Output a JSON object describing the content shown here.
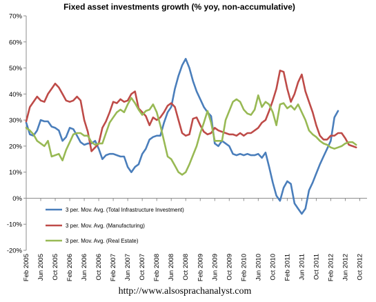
{
  "chart_data": {
    "type": "line",
    "title": "Fixed asset investments growth (% yoy, non-accumulative)",
    "footer": "http://www.alsosprachanalyst.com",
    "ylim": [
      -20,
      70
    ],
    "y_ticks": [
      "70%",
      "60%",
      "50%",
      "40%",
      "30%",
      "20%",
      "10%",
      "0%",
      "-10%",
      "-20%"
    ],
    "y_tick_values": [
      70,
      60,
      50,
      40,
      30,
      20,
      10,
      0,
      -10,
      -20
    ],
    "x_ticks": [
      "Feb 2005",
      "Jun 2005",
      "Oct 2005",
      "Feb 2006",
      "Jun 2006",
      "Oct 2006",
      "Feb 2007",
      "Jun 2007",
      "Oct 2007",
      "Feb 2008",
      "Jun 2008",
      "Oct 2008",
      "Feb 2009",
      "Jun 2009",
      "Oct 2009",
      "Feb 2010",
      "Jun 2010",
      "Oct 2010",
      "Feb 2011",
      "Jun 2011",
      "Oct 2011",
      "Feb 2012",
      "Jun 2012",
      "Oct 2012"
    ],
    "x_tick_months": [
      0,
      4,
      8,
      12,
      16,
      20,
      24,
      28,
      32,
      36,
      40,
      44,
      48,
      52,
      56,
      60,
      64,
      68,
      72,
      76,
      80,
      84,
      88,
      92
    ],
    "x_start": "Feb 2005",
    "x_end": "Dec 2012",
    "grid": false,
    "legend_position": "bottom-left",
    "series": [
      {
        "name": "3 per. Mov. Avg. (Total Infrastructure Investment)",
        "color": "#4a7ebb",
        "values": [
          29,
          24.5,
          24,
          26,
          30,
          29.5,
          29.5,
          27.5,
          27,
          26,
          22,
          23.5,
          27,
          26.5,
          24,
          21.5,
          20.5,
          21,
          21,
          22,
          19,
          15,
          16.5,
          17,
          17,
          16.5,
          16,
          16,
          12,
          10,
          12,
          13,
          17,
          19,
          22.5,
          23.5,
          24,
          24,
          29,
          33,
          35,
          42,
          47,
          51,
          53.5,
          50,
          45,
          41,
          38,
          35,
          33,
          31.5,
          21,
          20,
          22,
          21,
          20,
          17,
          16.5,
          17,
          16.5,
          17,
          16.5,
          16.5,
          17,
          15.5,
          17.5,
          12,
          6,
          1,
          -1,
          4,
          6.5,
          5.5,
          -2,
          -4,
          -6,
          -4,
          3,
          6,
          9.5,
          13,
          16,
          19,
          22,
          31,
          33.5
        ]
      },
      {
        "name": "3 per. Mov. Avg. (Manufacturing)",
        "color": "#be4b48",
        "values": [
          29.5,
          35,
          37,
          39,
          37.5,
          37,
          40,
          42,
          44,
          42.5,
          40,
          37.5,
          37,
          37.5,
          39,
          37.5,
          30,
          25.5,
          18,
          19.5,
          21,
          27,
          29.5,
          33,
          37,
          36.5,
          38,
          37,
          37.5,
          40,
          41,
          34.5,
          33,
          31.5,
          28,
          31,
          30,
          31,
          33,
          35.5,
          36.5,
          35,
          30,
          25,
          24,
          24.5,
          30.5,
          31,
          28,
          25.5,
          24.5,
          25,
          27,
          26,
          25.5,
          25,
          24.5,
          24.5,
          24,
          25,
          24,
          25,
          25,
          26,
          27,
          29,
          30,
          33.5,
          37.5,
          42,
          49,
          48.5,
          42,
          37,
          40,
          44.5,
          47.5,
          41,
          37,
          33,
          28,
          24,
          22.5,
          22.5,
          24,
          24,
          25,
          25,
          23,
          20.5,
          20,
          19.5
        ]
      },
      {
        "name": "3 per. Mov. Avg. (Real Estate)",
        "color": "#98b954",
        "values": [
          27,
          26,
          24.5,
          22,
          21,
          20,
          22,
          16,
          16.5,
          17,
          14.5,
          18.5,
          21.5,
          24.5,
          25,
          25,
          24,
          24,
          21.5,
          20.5,
          21,
          21,
          25,
          29,
          31,
          33,
          34,
          33,
          36,
          38.5,
          36.5,
          34,
          32,
          33.5,
          34,
          36,
          33,
          28,
          22,
          16,
          15,
          12.5,
          10,
          9,
          10,
          13,
          16.5,
          20,
          25,
          29,
          33.5,
          29,
          22,
          22,
          22,
          30,
          33.5,
          37,
          38,
          37,
          34,
          32.5,
          32,
          34,
          39.5,
          35,
          37,
          36,
          33,
          28,
          36,
          36.5,
          34.5,
          35.5,
          34,
          36,
          33,
          30,
          26,
          24.5,
          23.5,
          22,
          21,
          20.5,
          19.5,
          19,
          19.5,
          20,
          21,
          21.5,
          21.5,
          20.5
        ]
      }
    ]
  }
}
